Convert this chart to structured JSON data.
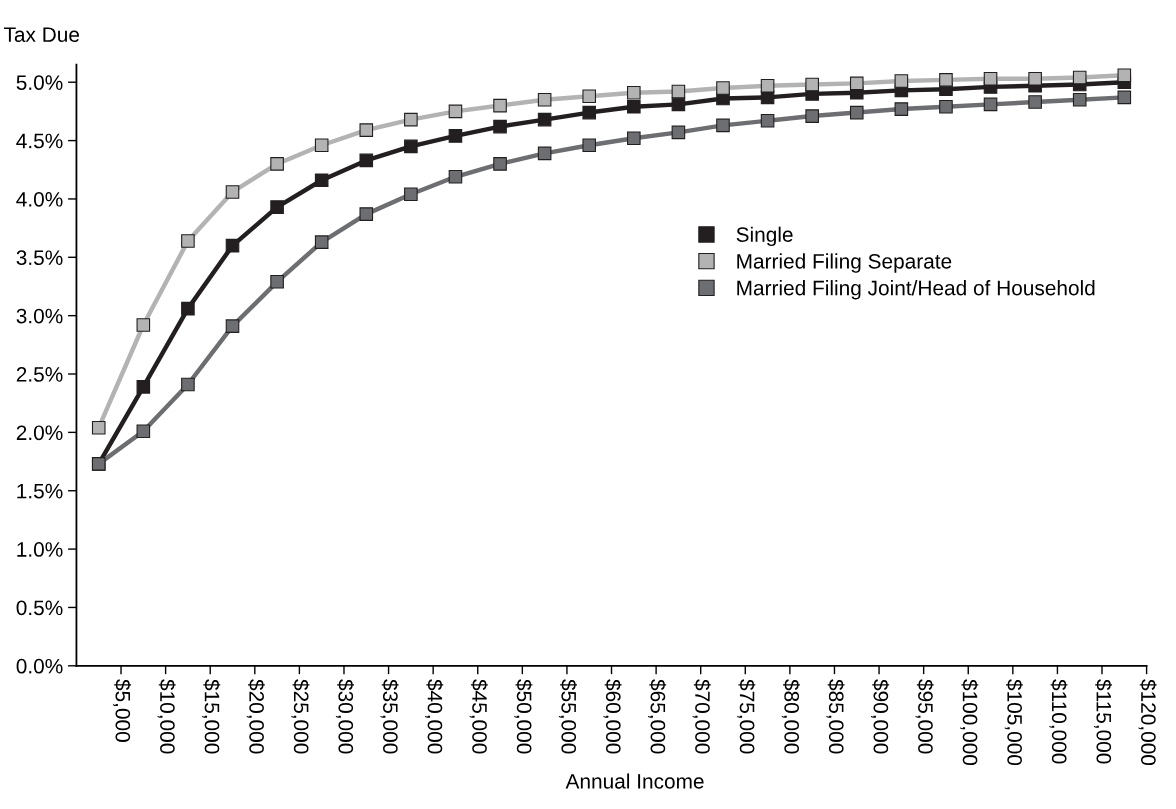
{
  "chart_data": {
    "type": "line",
    "ylabel": "Tax Due",
    "xlabel": "Annual Income",
    "x": [
      2500,
      7500,
      12500,
      17500,
      22500,
      27500,
      32500,
      37500,
      42500,
      47500,
      52500,
      57500,
      62500,
      67500,
      72500,
      77500,
      82500,
      87500,
      92500,
      97500,
      102500,
      107500,
      112500,
      117500
    ],
    "series": [
      {
        "name": "Single",
        "color": "#231f20",
        "values": [
          1.73,
          2.39,
          3.06,
          3.6,
          3.93,
          4.16,
          4.33,
          4.45,
          4.54,
          4.62,
          4.68,
          4.74,
          4.79,
          4.81,
          4.86,
          4.87,
          4.9,
          4.91,
          4.93,
          4.94,
          4.96,
          4.97,
          4.98,
          5.0
        ]
      },
      {
        "name": "Married Filing Separate",
        "color": "#b3b3b3",
        "values": [
          2.04,
          2.92,
          3.64,
          4.06,
          4.3,
          4.46,
          4.59,
          4.68,
          4.75,
          4.8,
          4.85,
          4.88,
          4.91,
          4.92,
          4.95,
          4.97,
          4.98,
          4.99,
          5.01,
          5.02,
          5.03,
          5.03,
          5.04,
          5.06
        ]
      },
      {
        "name": "Married Filing Joint/Head of Household",
        "color": "#6d6e71",
        "values": [
          1.73,
          2.01,
          2.41,
          2.91,
          3.29,
          3.63,
          3.87,
          4.04,
          4.19,
          4.3,
          4.39,
          4.46,
          4.52,
          4.57,
          4.63,
          4.67,
          4.71,
          4.74,
          4.77,
          4.79,
          4.81,
          4.83,
          4.85,
          4.87
        ]
      }
    ],
    "xlim": [
      0,
      120000
    ],
    "xticks": [
      {
        "value": 5000,
        "label": "$5,000"
      },
      {
        "value": 10000,
        "label": "$10,000"
      },
      {
        "value": 15000,
        "label": "$15,000"
      },
      {
        "value": 20000,
        "label": "$20,000"
      },
      {
        "value": 25000,
        "label": "$25,000"
      },
      {
        "value": 30000,
        "label": "$30,000"
      },
      {
        "value": 35000,
        "label": "$35,000"
      },
      {
        "value": 40000,
        "label": "$40,000"
      },
      {
        "value": 45000,
        "label": "$45,000"
      },
      {
        "value": 50000,
        "label": "$50,000"
      },
      {
        "value": 55000,
        "label": "$55,000"
      },
      {
        "value": 60000,
        "label": "$60,000"
      },
      {
        "value": 65000,
        "label": "$65,000"
      },
      {
        "value": 70000,
        "label": "$70,000"
      },
      {
        "value": 75000,
        "label": "$75,000"
      },
      {
        "value": 80000,
        "label": "$80,000"
      },
      {
        "value": 85000,
        "label": "$85,000"
      },
      {
        "value": 90000,
        "label": "$90,000"
      },
      {
        "value": 95000,
        "label": "$95,000"
      },
      {
        "value": 100000,
        "label": "$100,000"
      },
      {
        "value": 105000,
        "label": "$105,000"
      },
      {
        "value": 110000,
        "label": "$110,000"
      },
      {
        "value": 115000,
        "label": "$115,000"
      },
      {
        "value": 120000,
        "label": "$120,000"
      }
    ],
    "ylim": [
      0,
      5.15
    ],
    "yticks": [
      {
        "value": 0,
        "label": "0.0%"
      },
      {
        "value": 0.5,
        "label": "0.5%"
      },
      {
        "value": 1.0,
        "label": "1.0%"
      },
      {
        "value": 1.5,
        "label": "1.5%"
      },
      {
        "value": 2.0,
        "label": "2.0%"
      },
      {
        "value": 2.5,
        "label": "2.5%"
      },
      {
        "value": 3.0,
        "label": "3.0%"
      },
      {
        "value": 3.5,
        "label": "3.5%"
      },
      {
        "value": 4.0,
        "label": "4.0%"
      },
      {
        "value": 4.5,
        "label": "4.5%"
      },
      {
        "value": 5.0,
        "label": "5.0%"
      }
    ],
    "grid": false,
    "legend": "right",
    "marker": "square",
    "line_style": "solid"
  }
}
